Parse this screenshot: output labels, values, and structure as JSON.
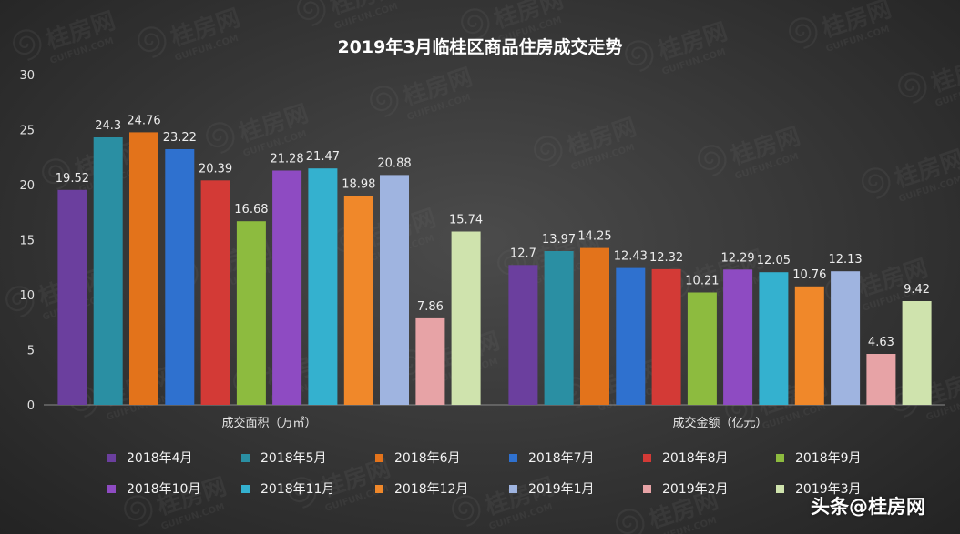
{
  "title": "2019年3月临桂区商品住房成交走势",
  "credit": "头条@桂房网",
  "watermark": {
    "brand": "桂房网",
    "domain": "GUIFUN.COM"
  },
  "chart_data": {
    "type": "bar",
    "categories": [
      "成交面积（万㎡）",
      "成交金额（亿元）"
    ],
    "ylim": [
      0,
      30
    ],
    "yticks": [
      0,
      5,
      10,
      15,
      20,
      25,
      30
    ],
    "grid": false,
    "legend_position": "bottom",
    "series": [
      {
        "name": "2018年4月",
        "values": [
          19.52,
          12.7
        ],
        "color": "#6b3f9e"
      },
      {
        "name": "2018年5月",
        "values": [
          24.3,
          13.97
        ],
        "color": "#2a8fa3"
      },
      {
        "name": "2018年6月",
        "values": [
          24.76,
          14.25
        ],
        "color": "#e3731b"
      },
      {
        "name": "2018年7月",
        "values": [
          23.22,
          12.43
        ],
        "color": "#2f71cf"
      },
      {
        "name": "2018年8月",
        "values": [
          20.39,
          12.32
        ],
        "color": "#d33a36"
      },
      {
        "name": "2018年9月",
        "values": [
          16.68,
          10.21
        ],
        "color": "#8dbb3f"
      },
      {
        "name": "2018年10月",
        "values": [
          21.28,
          12.29
        ],
        "color": "#8e4bc2"
      },
      {
        "name": "2018年11月",
        "values": [
          21.47,
          12.05
        ],
        "color": "#34b1cf"
      },
      {
        "name": "2018年12月",
        "values": [
          18.98,
          10.76
        ],
        "color": "#f0882a"
      },
      {
        "name": "2019年1月",
        "values": [
          20.88,
          12.13
        ],
        "color": "#9fb4e0"
      },
      {
        "name": "2019年2月",
        "values": [
          7.86,
          4.63
        ],
        "color": "#e7a3a6"
      },
      {
        "name": "2019年3月",
        "values": [
          15.74,
          9.42
        ],
        "color": "#cfe3ad"
      }
    ]
  }
}
